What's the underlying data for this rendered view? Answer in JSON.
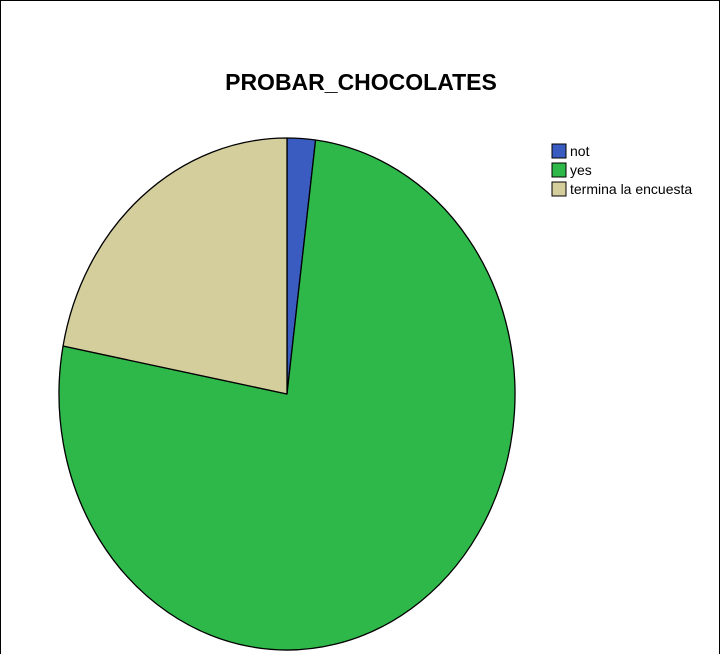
{
  "chart_data": {
    "type": "pie",
    "title": "PROBAR_CHOCOLATES",
    "categories": [
      "not",
      "yes",
      "termina la encuesta"
    ],
    "values": [
      2,
      76,
      22
    ],
    "colors": [
      "#3a5bbf",
      "#2fb84a",
      "#d4cd9c"
    ],
    "legend_placement": "top-right",
    "start_angle_deg": 0,
    "direction": "clockwise"
  }
}
